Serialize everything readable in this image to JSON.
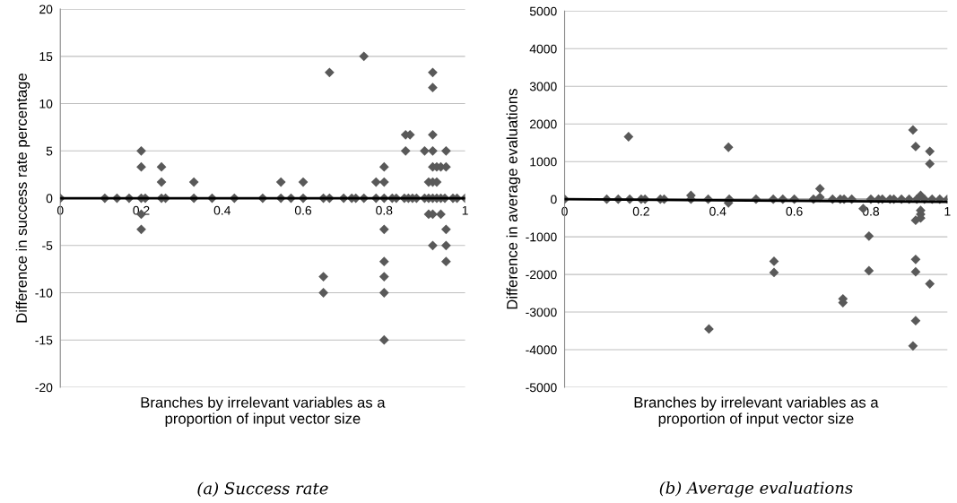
{
  "chart_data": [
    {
      "type": "scatter",
      "xlabel": "Branches by irrelevant variables as a\nproportion of input vector size",
      "ylabel": "Difference in success rate percentage",
      "annotations": [
        "(a) Success rate"
      ],
      "xlim": [
        0,
        1
      ],
      "xticks": [
        0,
        0.2,
        0.4,
        0.6,
        0.8,
        1
      ],
      "ylim": [
        -20,
        20
      ],
      "yticks": [
        -20,
        -15,
        -10,
        -5,
        0,
        5,
        10,
        15,
        20
      ],
      "grid": "y",
      "legend": false,
      "series": [
        {
          "marker": "diamond",
          "color": "#595959",
          "x": [
            0,
            0.11,
            0.14,
            0.17,
            0.2,
            0.21,
            0.25,
            0.26,
            0.33,
            0.375,
            0.43,
            0.5,
            0.545,
            0.57,
            0.6,
            0.65,
            0.665,
            0.7,
            0.72,
            0.73,
            0.75,
            0.78,
            0.8,
            0.82,
            0.83,
            0.85,
            0.86,
            0.87,
            0.88,
            0.9,
            0.91,
            0.92,
            0.93,
            0.94,
            0.95,
            0.97,
            0.98,
            1.0,
            0.2,
            0.2,
            0.2,
            0.2,
            0.25,
            0.25,
            0.33,
            0.545,
            0.6,
            0.65,
            0.65,
            0.665,
            0.75,
            0.78,
            0.8,
            0.8,
            0.8,
            0.8,
            0.8,
            0.8,
            0.8,
            0.853,
            0.853,
            0.864,
            0.9,
            0.91,
            0.91,
            0.92,
            0.92,
            0.92,
            0.92,
            0.92,
            0.92,
            0.92,
            0.92,
            0.93,
            0.93,
            0.94,
            0.94,
            0.953,
            0.953,
            0.953,
            0.953,
            0.953
          ],
          "values": [
            0,
            0,
            0,
            0,
            0,
            0,
            0,
            0,
            0,
            0,
            0,
            0,
            0,
            0,
            0,
            0,
            0,
            0,
            0,
            0,
            0,
            0,
            0,
            0,
            0,
            0,
            0,
            0,
            0,
            0,
            0,
            0,
            0,
            0,
            0,
            0,
            0,
            0,
            5,
            3.3,
            -1.7,
            -3.3,
            3.3,
            1.7,
            1.7,
            1.7,
            1.7,
            -8.3,
            -10,
            13.3,
            15,
            1.7,
            1.7,
            3.3,
            -3.3,
            -6.7,
            -8.3,
            -10,
            -15,
            6.7,
            5,
            6.7,
            5,
            1.7,
            -1.7,
            13.3,
            11.7,
            6.7,
            5,
            3.3,
            1.7,
            -1.7,
            -5,
            3.3,
            1.7,
            3.3,
            -1.7,
            5,
            3.3,
            -3.3,
            -5,
            -6.7
          ]
        },
        {
          "type": "line",
          "marker": "none",
          "color": "#000000",
          "x": [
            0,
            1
          ],
          "values": [
            0,
            0
          ]
        }
      ]
    },
    {
      "type": "scatter",
      "xlabel": "Branches by irrelevant variables as a\nproportion of input vector size",
      "ylabel": "Difference in average evaluations",
      "annotations": [
        "(b) Average evaluations"
      ],
      "xlim": [
        0,
        1
      ],
      "xticks": [
        0,
        0.2,
        0.4,
        0.6,
        0.8,
        1
      ],
      "ylim": [
        -5000,
        5000
      ],
      "yticks": [
        -5000,
        -4000,
        -3000,
        -2000,
        -1000,
        0,
        1000,
        2000,
        3000,
        4000,
        5000
      ],
      "grid": "y",
      "legend": false,
      "series": [
        {
          "marker": "diamond",
          "color": "#595959",
          "x": [
            0,
            0.11,
            0.14,
            0.17,
            0.2,
            0.21,
            0.25,
            0.26,
            0.33,
            0.375,
            0.43,
            0.5,
            0.545,
            0.57,
            0.6,
            0.65,
            0.7,
            0.72,
            0.73,
            0.75,
            0.8,
            0.82,
            0.83,
            0.85,
            0.86,
            0.88,
            0.9,
            0.92,
            0.94,
            0.96,
            0.98,
            1.0,
            0.167,
            0.33,
            0.377,
            0.428,
            0.428,
            0.547,
            0.547,
            0.667,
            0.667,
            0.727,
            0.727,
            0.78,
            0.795,
            0.795,
            0.91,
            0.91,
            0.917,
            0.917,
            0.917,
            0.917,
            0.917,
            0.93,
            0.93,
            0.93,
            0.93,
            0.954,
            0.954,
            0.954
          ],
          "values": [
            0,
            0,
            0,
            0,
            0,
            0,
            0,
            0,
            0,
            0,
            0,
            0,
            0,
            0,
            0,
            0,
            0,
            0,
            0,
            0,
            0,
            0,
            0,
            0,
            0,
            0,
            0,
            0,
            0,
            0,
            0,
            0,
            1660,
            100,
            -3450,
            1380,
            -100,
            -1650,
            -1950,
            280,
            50,
            -2650,
            -2750,
            -250,
            -980,
            -1900,
            1840,
            -3900,
            1400,
            -560,
            -1600,
            -1930,
            -3230,
            100,
            -300,
            -400,
            -500,
            1270,
            940,
            -2250
          ]
        },
        {
          "type": "line",
          "marker": "none",
          "color": "#000000",
          "x": [
            0,
            1
          ],
          "values": [
            0,
            -70
          ]
        }
      ]
    }
  ]
}
